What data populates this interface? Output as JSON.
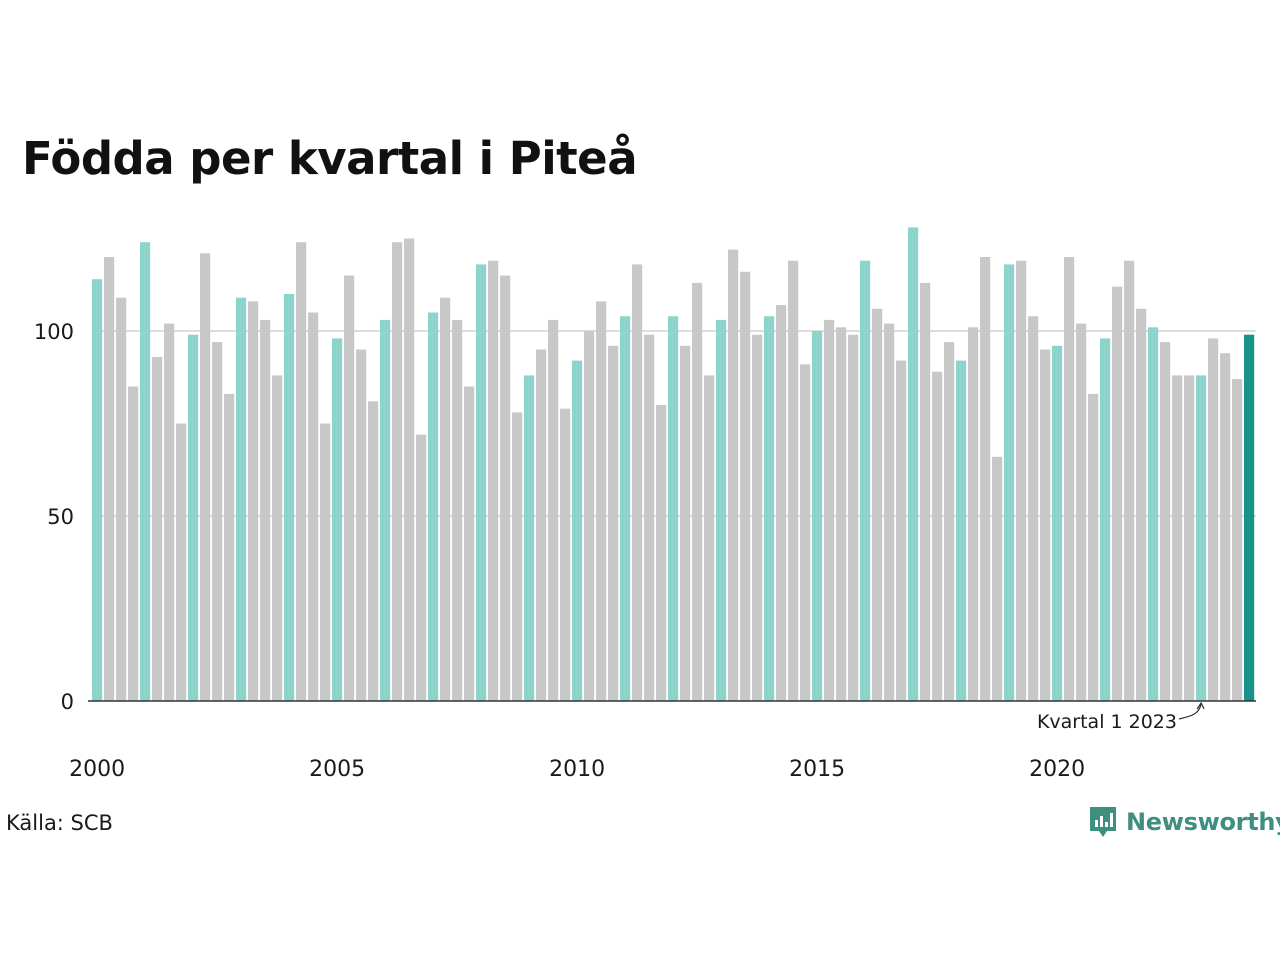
{
  "title": "Födda per kvartal i Piteå",
  "source": "Källa: SCB",
  "brand": "Newsworthy",
  "colors": {
    "q1": "#8dd5cc",
    "other": "#c8c8c8",
    "highlight": "#17938a",
    "grid": "#dddddd",
    "axis": "#333333",
    "brand": "#3f8f80"
  },
  "chart_data": {
    "type": "bar",
    "title": "Födda per kvartal i Piteå",
    "xlabel": "",
    "ylabel": "",
    "ylim": [
      0,
      130
    ],
    "y_ticks": [
      0,
      50,
      100
    ],
    "x_tick_labels": [
      "2000",
      "2005",
      "2010",
      "2015",
      "2020"
    ],
    "grid": true,
    "annotation": "Kvartal 1 2023",
    "start": "2000 Q1",
    "end": "2024 Q1",
    "series": [
      {
        "values": [
          114,
          120,
          109,
          85,
          124,
          93,
          102,
          75,
          99,
          121,
          97,
          83,
          109,
          108,
          103,
          88,
          110,
          124,
          105,
          75,
          98,
          115,
          95,
          81,
          103,
          124,
          125,
          72,
          105,
          109,
          103,
          85,
          118,
          119,
          115,
          78,
          88,
          95,
          103,
          79,
          92,
          100,
          108,
          96,
          104,
          118,
          99,
          80,
          104,
          96,
          113,
          88,
          103,
          122,
          116,
          99,
          104,
          107,
          119,
          91,
          100,
          103,
          101,
          99,
          119,
          106,
          102,
          92,
          128,
          113,
          89,
          97,
          92,
          101,
          120,
          66,
          118,
          119,
          104,
          95,
          96,
          120,
          102,
          83,
          98,
          112,
          119,
          106,
          101,
          97,
          88,
          88,
          88,
          98,
          94,
          87,
          99
        ]
      }
    ]
  }
}
